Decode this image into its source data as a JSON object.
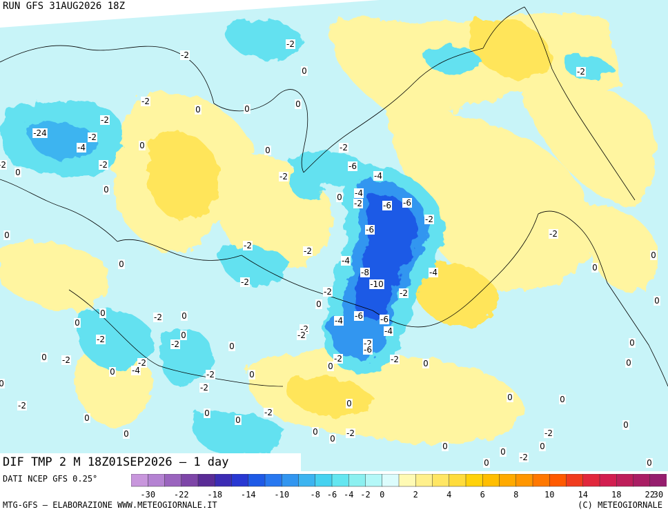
{
  "header": {
    "run_title": "RUN GFS 31AUG2026 18Z"
  },
  "field_title": "DIF TMP 2 M 18Z01SEP2026 – 1 day",
  "source_label": "DATI NCEP GFS 0.25°",
  "footer": {
    "left": "MTG-GFS – ELABORAZIONE WWW.METEOGIORNALE.IT",
    "right": "(C) METEOGIORNALE"
  },
  "colorbar": {
    "colors": [
      "#c896dc",
      "#b482d2",
      "#9a64be",
      "#7e46a8",
      "#5a2c96",
      "#3c2cb4",
      "#2838d2",
      "#1e5ae6",
      "#2878f0",
      "#3296f0",
      "#3cb4f0",
      "#46d2f0",
      "#64e6f0",
      "#8cf0f0",
      "#b4f8f8",
      "#dcfcfc",
      "#fffab4",
      "#fff08c",
      "#ffe664",
      "#ffdc3c",
      "#ffd20a",
      "#ffbe00",
      "#ffaa00",
      "#ff9600",
      "#ff7800",
      "#ff5a00",
      "#f03c1e",
      "#e1283c",
      "#d21e50",
      "#be1e5a",
      "#aa1e64",
      "#961e6e"
    ],
    "ticks": [
      "-30",
      "-22",
      "-18",
      "-14",
      "-10",
      "-8",
      "-6",
      "-4",
      "-2",
      "0",
      "2",
      "4",
      "6",
      "8",
      "10",
      "14",
      "18",
      "22",
      "30"
    ]
  },
  "contour_labels": [
    "-2",
    "0",
    "-4",
    "-6",
    "-8",
    "-10",
    "-24"
  ]
}
